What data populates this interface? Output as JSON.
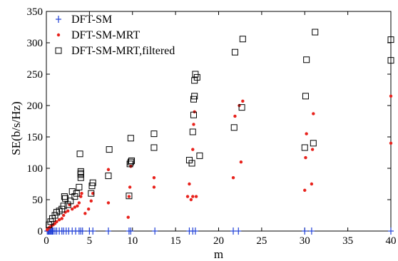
{
  "chart_data": {
    "type": "scatter",
    "title": "",
    "xlabel": "m",
    "ylabel": "SE(b/s/Hz)",
    "xlim": [
      0,
      40
    ],
    "ylim": [
      0,
      350
    ],
    "xticks": [
      "0",
      "5",
      "10",
      "15",
      "20",
      "25",
      "30",
      "35",
      "40"
    ],
    "yticks": [
      "0",
      "50",
      "100",
      "150",
      "200",
      "250",
      "300",
      "350"
    ],
    "grid": false,
    "legend_position": "top-left",
    "series": [
      {
        "name": "DFT-SM",
        "marker": "plus",
        "color": "#1f3fd6",
        "points": [
          [
            0.1,
            0
          ],
          [
            0.2,
            0
          ],
          [
            0.3,
            0
          ],
          [
            0.4,
            0
          ],
          [
            0.5,
            0
          ],
          [
            0.6,
            0
          ],
          [
            0.7,
            0
          ],
          [
            0.8,
            0
          ],
          [
            1.0,
            0
          ],
          [
            1.2,
            0
          ],
          [
            1.5,
            0
          ],
          [
            1.8,
            0
          ],
          [
            2.0,
            0
          ],
          [
            2.3,
            0
          ],
          [
            2.6,
            0
          ],
          [
            3.0,
            0
          ],
          [
            3.4,
            0
          ],
          [
            3.8,
            0
          ],
          [
            4.0,
            0
          ],
          [
            4.2,
            0
          ],
          [
            5.0,
            0
          ],
          [
            5.4,
            0
          ],
          [
            7.2,
            0
          ],
          [
            9.6,
            0
          ],
          [
            9.8,
            0
          ],
          [
            12.6,
            0
          ],
          [
            16.6,
            0
          ],
          [
            17.0,
            0
          ],
          [
            17.3,
            0
          ],
          [
            21.7,
            0
          ],
          [
            22.3,
            0
          ],
          [
            30.0,
            0
          ],
          [
            30.8,
            0
          ],
          [
            40.0,
            0
          ]
        ]
      },
      {
        "name": "DFT-SM-MRT",
        "marker": "dot",
        "color": "#e8221c",
        "points": [
          [
            0.1,
            2
          ],
          [
            0.2,
            4
          ],
          [
            0.3,
            5
          ],
          [
            0.4,
            6
          ],
          [
            0.5,
            7
          ],
          [
            0.6,
            8
          ],
          [
            0.8,
            10
          ],
          [
            1.0,
            12
          ],
          [
            1.2,
            15
          ],
          [
            1.5,
            18
          ],
          [
            1.8,
            20
          ],
          [
            2.0,
            25
          ],
          [
            2.2,
            30
          ],
          [
            2.5,
            32
          ],
          [
            2.7,
            42
          ],
          [
            3.0,
            35
          ],
          [
            3.3,
            38
          ],
          [
            3.6,
            40
          ],
          [
            3.8,
            45
          ],
          [
            4.0,
            55
          ],
          [
            4.1,
            60
          ],
          [
            4.5,
            28
          ],
          [
            4.9,
            35
          ],
          [
            5.2,
            48
          ],
          [
            5.4,
            60
          ],
          [
            7.2,
            45
          ],
          [
            7.2,
            98
          ],
          [
            9.5,
            22
          ],
          [
            9.6,
            55
          ],
          [
            9.7,
            70
          ],
          [
            9.8,
            103
          ],
          [
            12.5,
            70
          ],
          [
            12.5,
            85
          ],
          [
            16.4,
            55
          ],
          [
            16.6,
            75
          ],
          [
            16.8,
            50
          ],
          [
            17.0,
            55
          ],
          [
            17.0,
            130
          ],
          [
            17.1,
            170
          ],
          [
            17.2,
            190
          ],
          [
            17.4,
            55
          ],
          [
            21.7,
            85
          ],
          [
            21.9,
            183
          ],
          [
            22.4,
            200
          ],
          [
            22.6,
            110
          ],
          [
            22.8,
            207
          ],
          [
            30.0,
            65
          ],
          [
            30.1,
            117
          ],
          [
            30.2,
            155
          ],
          [
            30.8,
            75
          ],
          [
            30.9,
            130
          ],
          [
            31.0,
            187
          ],
          [
            40.0,
            140
          ],
          [
            40.0,
            215
          ]
        ]
      },
      {
        "name": "DFT-SM-MRT,filtered",
        "marker": "square",
        "color": "#000000",
        "points": [
          [
            0.3,
            10
          ],
          [
            0.5,
            15
          ],
          [
            0.7,
            20
          ],
          [
            1.0,
            25
          ],
          [
            1.2,
            30
          ],
          [
            1.5,
            32
          ],
          [
            1.8,
            35
          ],
          [
            2.0,
            40
          ],
          [
            2.1,
            55
          ],
          [
            2.2,
            52
          ],
          [
            2.5,
            42
          ],
          [
            2.8,
            48
          ],
          [
            3.0,
            63
          ],
          [
            3.3,
            55
          ],
          [
            3.5,
            60
          ],
          [
            3.8,
            70
          ],
          [
            3.9,
            123
          ],
          [
            4.0,
            95
          ],
          [
            4.0,
            90
          ],
          [
            4.0,
            92
          ],
          [
            4.0,
            85
          ],
          [
            5.2,
            60
          ],
          [
            5.3,
            72
          ],
          [
            5.4,
            77
          ],
          [
            7.2,
            88
          ],
          [
            7.3,
            130
          ],
          [
            9.6,
            56
          ],
          [
            9.7,
            107
          ],
          [
            9.8,
            110
          ],
          [
            9.9,
            112
          ],
          [
            9.8,
            148
          ],
          [
            12.5,
            133
          ],
          [
            12.5,
            155
          ],
          [
            16.6,
            113
          ],
          [
            16.9,
            108
          ],
          [
            17.0,
            158
          ],
          [
            17.1,
            185
          ],
          [
            17.1,
            210
          ],
          [
            17.2,
            215
          ],
          [
            17.2,
            240
          ],
          [
            17.3,
            250
          ],
          [
            17.5,
            245
          ],
          [
            17.8,
            120
          ],
          [
            21.8,
            165
          ],
          [
            21.9,
            285
          ],
          [
            22.7,
            197
          ],
          [
            22.8,
            306
          ],
          [
            30.0,
            133
          ],
          [
            30.1,
            215
          ],
          [
            30.2,
            273
          ],
          [
            31.0,
            140
          ],
          [
            31.2,
            317
          ],
          [
            40.0,
            272
          ],
          [
            40.0,
            305
          ]
        ]
      }
    ]
  }
}
